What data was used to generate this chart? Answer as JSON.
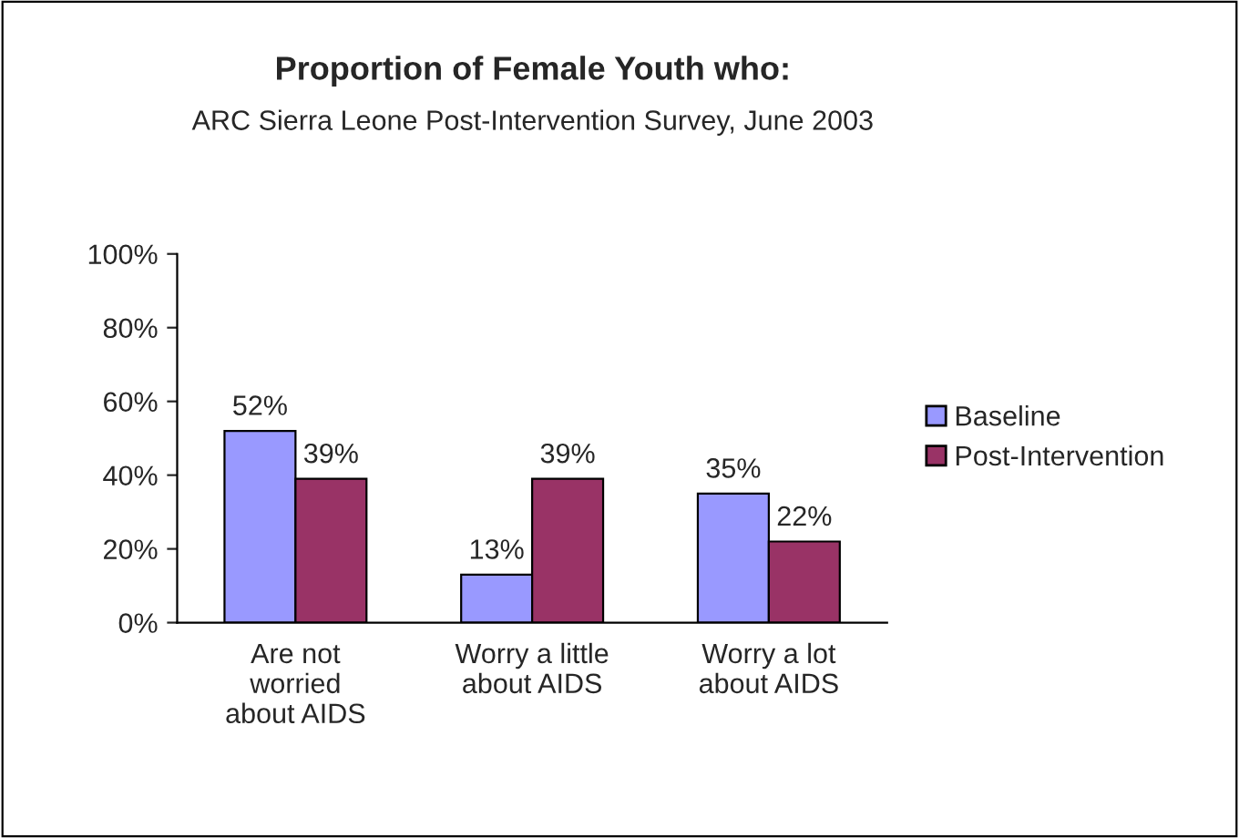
{
  "chart_data": {
    "type": "bar",
    "title": "Proportion of Female Youth who:",
    "subtitle": "ARC Sierra Leone Post-Intervention Survey, June 2003",
    "categories": [
      "Are not\nworried\nabout AIDS",
      "Worry a little\nabout AIDS",
      "Worry a lot\nabout AIDS"
    ],
    "series": [
      {
        "name": "Baseline",
        "color": "#9999ff",
        "values": [
          52,
          13,
          35
        ],
        "value_labels": [
          "52%",
          "13%",
          "35%"
        ]
      },
      {
        "name": "Post-Intervention",
        "color": "#993366",
        "values": [
          39,
          39,
          22
        ],
        "value_labels": [
          "39%",
          "39%",
          "22%"
        ]
      }
    ],
    "ylim": [
      0,
      100
    ],
    "yticks": [
      {
        "value": 0,
        "label": "0%"
      },
      {
        "value": 20,
        "label": "20%"
      },
      {
        "value": 40,
        "label": "40%"
      },
      {
        "value": 60,
        "label": "60%"
      },
      {
        "value": 80,
        "label": "80%"
      },
      {
        "value": 100,
        "label": "100%"
      }
    ],
    "grid": false,
    "legend": "right"
  }
}
